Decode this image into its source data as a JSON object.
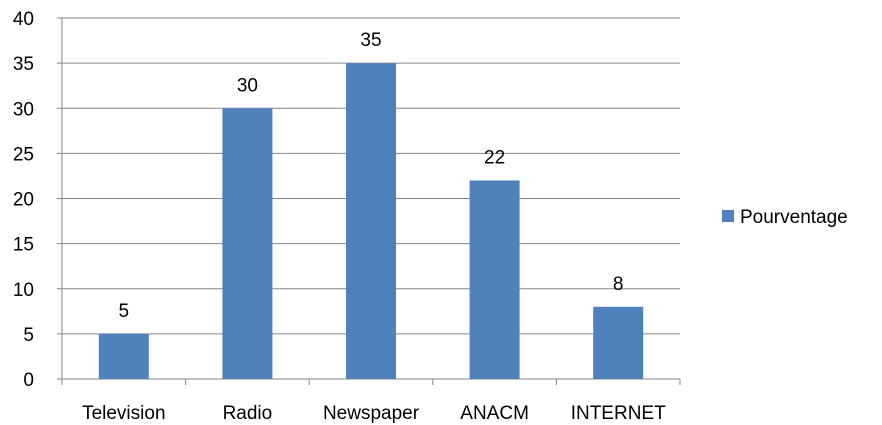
{
  "chart_data": {
    "type": "bar",
    "categories": [
      "Television",
      "Radio",
      "Newspaper",
      "ANACM",
      "INTERNET"
    ],
    "series": [
      {
        "name": "Pourventage",
        "values": [
          5,
          30,
          35,
          22,
          8
        ]
      }
    ],
    "ylim": [
      0,
      40
    ],
    "yticks": [
      "0",
      "5",
      "10",
      "15",
      "20",
      "25",
      "30",
      "35",
      "40"
    ],
    "grid": true,
    "legend": "right",
    "bar_color": "#4f81bd",
    "grid_color": "#868686"
  }
}
